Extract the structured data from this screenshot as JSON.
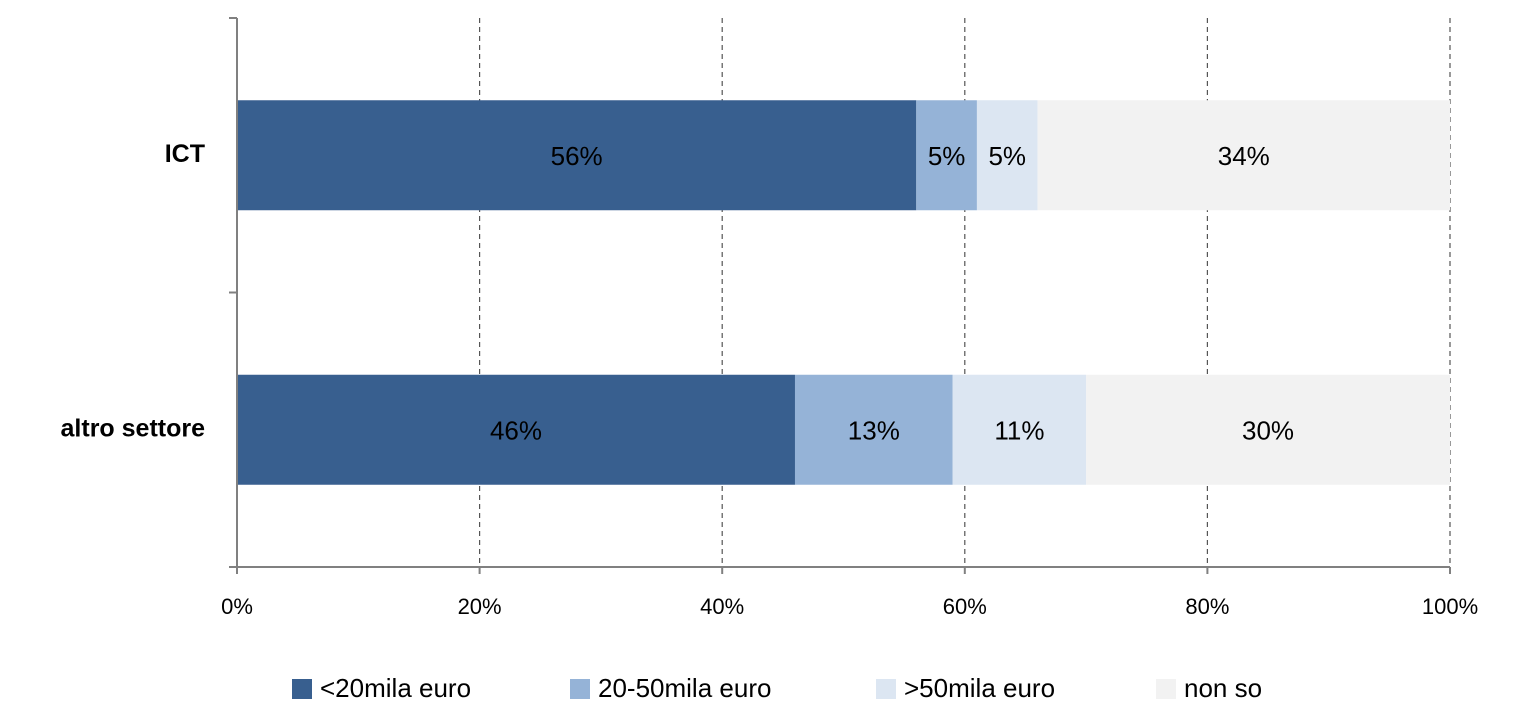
{
  "chart_data": {
    "type": "stacked_bar_horizontal",
    "categories": [
      "ICT",
      "altro settore"
    ],
    "series": [
      {
        "name": "<20mila euro",
        "color": "#385f8f",
        "values": [
          56,
          46
        ],
        "value_labels": [
          "56%",
          "46%"
        ]
      },
      {
        "name": "20-50mila euro",
        "color": "#95b3d7",
        "values": [
          5,
          13
        ],
        "value_labels": [
          "5%",
          "13%"
        ]
      },
      {
        "name": ">50mila euro",
        "color": "#dce6f2",
        "values": [
          5,
          11
        ],
        "value_labels": [
          "5%",
          "11%"
        ]
      },
      {
        "name": "non so",
        "color": "#f2f2f2",
        "values": [
          34,
          30
        ],
        "value_labels": [
          "34%",
          "30%"
        ]
      }
    ],
    "xlim": [
      0,
      100
    ],
    "xticks": [
      {
        "value": 0,
        "label": "0%"
      },
      {
        "value": 20,
        "label": "20%"
      },
      {
        "value": 40,
        "label": "40%"
      },
      {
        "value": 60,
        "label": "60%"
      },
      {
        "value": 80,
        "label": "80%"
      },
      {
        "value": 100,
        "label": "100%"
      }
    ],
    "grid": true,
    "legend": "bottom"
  }
}
